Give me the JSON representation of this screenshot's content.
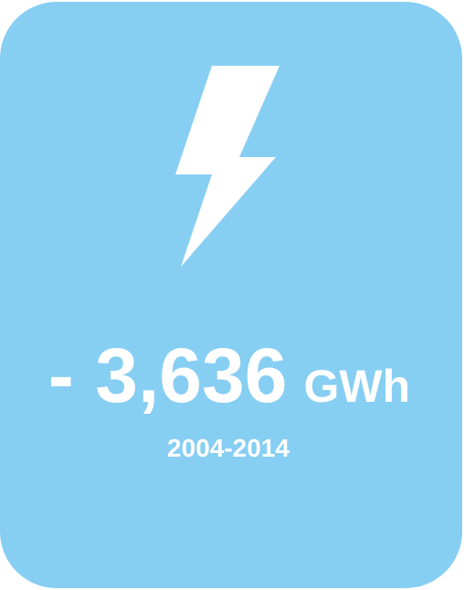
{
  "card": {
    "value": "- 3,636",
    "unit": "GWh",
    "period": "2004-2014"
  }
}
